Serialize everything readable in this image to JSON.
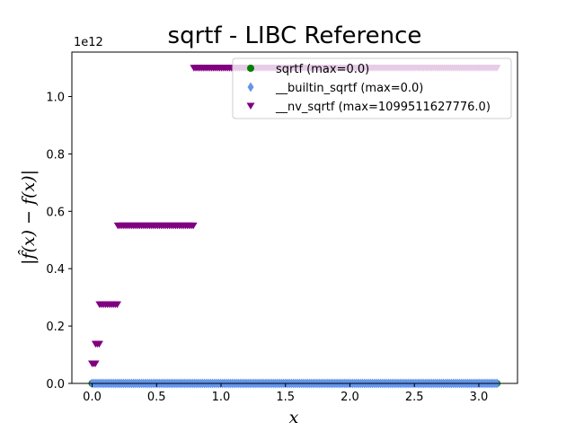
{
  "chart_data": {
    "type": "scatter",
    "title": "sqrtf - LIBC Reference",
    "xlabel": "x",
    "ylabel": "|f̂(x) − f(x)|",
    "y_offset_label": "1e12",
    "xlim": [
      -0.157,
      3.3
    ],
    "ylim": [
      0,
      1.155
    ],
    "y_scale_factor": 1000000000000.0,
    "x_ticks": [
      0.0,
      0.5,
      1.0,
      1.5,
      2.0,
      2.5,
      3.0
    ],
    "x_tick_labels": [
      "0.0",
      "0.5",
      "1.0",
      "1.5",
      "2.0",
      "2.5",
      "3.0"
    ],
    "y_ticks": [
      0.0,
      0.2,
      0.4,
      0.6,
      0.8,
      1.0
    ],
    "y_tick_labels": [
      "0.0",
      "0.2",
      "0.4",
      "0.6",
      "0.8",
      "1.0"
    ],
    "grid": false,
    "legend_position": "top-right",
    "x_range": [
      0,
      3.14
    ],
    "series": [
      {
        "name": "sqrtf (max=0.0)",
        "marker": "circle",
        "color": "#008000",
        "segments": [
          {
            "x_start": 0.0,
            "x_end": 3.14,
            "y": 0.0
          }
        ]
      },
      {
        "name": "__builtin_sqrtf (max=0.0)",
        "marker": "diamond",
        "color": "#6495ED",
        "segments": [
          {
            "x_start": 0.0,
            "x_end": 3.14,
            "y": 0.0
          }
        ]
      },
      {
        "name": "__nv_sqrtf (max=1099511627776.0)",
        "marker": "triangle-down",
        "color": "#800080",
        "segments": [
          {
            "x_start": 0.0,
            "x_end": 0.025,
            "y": 0.0687
          },
          {
            "x_start": 0.027,
            "x_end": 0.055,
            "y": 0.1374
          },
          {
            "x_start": 0.058,
            "x_end": 0.195,
            "y": 0.2749
          },
          {
            "x_start": 0.2,
            "x_end": 0.785,
            "y": 0.5498
          },
          {
            "x_start": 0.79,
            "x_end": 3.14,
            "y": 1.0995
          }
        ]
      }
    ]
  }
}
